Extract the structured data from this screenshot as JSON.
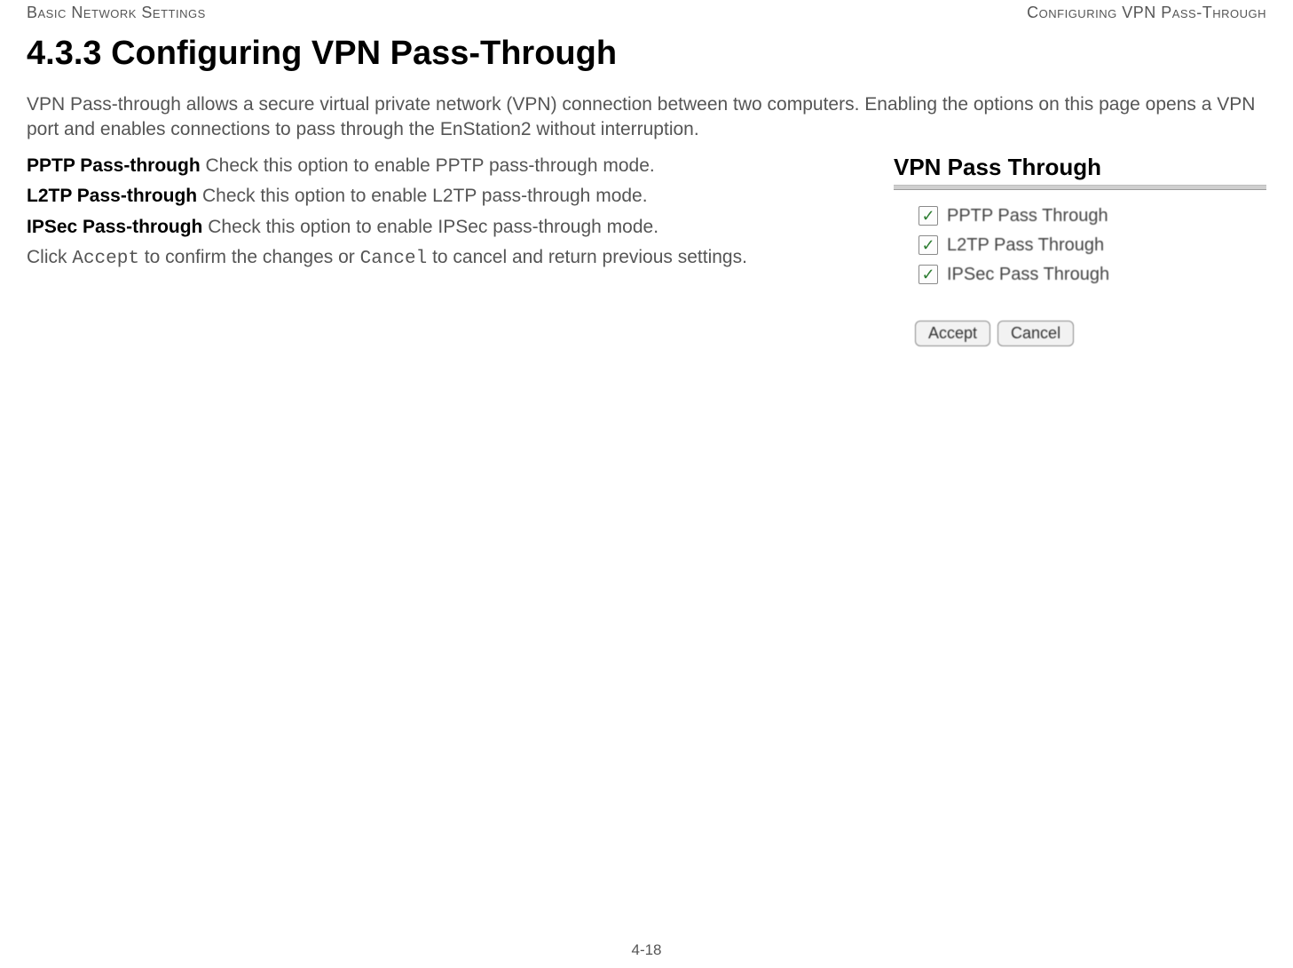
{
  "header": {
    "left": "Basic Network Settings",
    "right": "Configuring VPN Pass-Through"
  },
  "heading": "4.3.3 Configuring VPN Pass-Through",
  "intro": "VPN Pass-through allows a secure virtual private network (VPN) connection between two computers. Enabling the options on this page opens a VPN port and enables connections to pass through the EnStation2 without interruption.",
  "options": {
    "pptp": {
      "label": "PPTP Pass-through",
      "desc": "  Check this option to enable PPTP pass-through mode."
    },
    "l2tp": {
      "label": "L2TP Pass-through",
      "desc": "  Check this option to enable L2TP pass-through mode."
    },
    "ipsec": {
      "label": "IPSec Pass-through",
      "desc": "  Check this option to enable IPSec pass-through mode."
    }
  },
  "confirm": {
    "prefix": "Click ",
    "accept": "Accept",
    "mid": " to confirm the changes or ",
    "cancel": "Cancel",
    "suffix": " to cancel and return previous settings."
  },
  "widget": {
    "title": "VPN Pass Through",
    "checkboxes": {
      "pptp": {
        "label": "PPTP Pass Through",
        "checked_glyph": "✓"
      },
      "l2tp": {
        "label": "L2TP Pass Through",
        "checked_glyph": "✓"
      },
      "ipsec": {
        "label": "IPSec Pass Through",
        "checked_glyph": "✓"
      }
    },
    "buttons": {
      "accept": "Accept",
      "cancel": "Cancel"
    }
  },
  "footer": {
    "page": "4-18"
  },
  "colors": {
    "heading": "#000000",
    "body_text": "#555555",
    "check_green": "#2e7d32",
    "button_bg": "#f2f2f2",
    "button_border": "#8a8a8a",
    "divider": "#cfcfcf"
  }
}
